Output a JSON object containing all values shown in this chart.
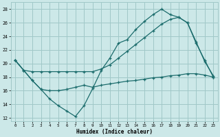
{
  "xlabel": "Humidex (Indice chaleur)",
  "xlim": [
    -0.5,
    23.5
  ],
  "ylim": [
    11.5,
    29.0
  ],
  "yticks": [
    12,
    14,
    16,
    18,
    20,
    22,
    24,
    26,
    28
  ],
  "xticks": [
    0,
    1,
    2,
    3,
    4,
    5,
    6,
    7,
    8,
    9,
    10,
    11,
    12,
    13,
    14,
    15,
    16,
    17,
    18,
    19,
    20,
    21,
    22,
    23
  ],
  "bg_color": "#cce8e8",
  "grid_color": "#a0c8c8",
  "line_color": "#1a6b6b",
  "line1_x": [
    0,
    1,
    2,
    3,
    4,
    5,
    6,
    7,
    8,
    9,
    10,
    11,
    12,
    13,
    14,
    15,
    16,
    17,
    18,
    19,
    20,
    21,
    22,
    23
  ],
  "line1_y": [
    20.5,
    19.0,
    17.5,
    16.2,
    14.8,
    13.8,
    13.0,
    12.2,
    13.8,
    16.3,
    19.0,
    20.8,
    23.0,
    23.5,
    25.0,
    26.2,
    27.2,
    28.0,
    27.2,
    26.8,
    26.0,
    23.0,
    20.5,
    18.0
  ],
  "line2_x": [
    0,
    1,
    2,
    3,
    4,
    5,
    6,
    7,
    8,
    9,
    10,
    11,
    12,
    13,
    14,
    15,
    16,
    17,
    18,
    19,
    20,
    21,
    22,
    23
  ],
  "line2_y": [
    20.5,
    19.0,
    18.8,
    18.8,
    18.8,
    18.8,
    18.8,
    18.8,
    18.8,
    18.8,
    19.2,
    19.8,
    20.8,
    21.8,
    22.8,
    23.8,
    24.8,
    25.8,
    26.5,
    26.8,
    26.0,
    23.2,
    20.3,
    18.2
  ],
  "line3_x": [
    0,
    1,
    2,
    3,
    4,
    5,
    6,
    7,
    8,
    9,
    10,
    11,
    12,
    13,
    14,
    15,
    16,
    17,
    18,
    19,
    20,
    21,
    22,
    23
  ],
  "line3_y": [
    20.5,
    19.0,
    17.5,
    16.2,
    16.0,
    16.0,
    16.2,
    16.5,
    16.8,
    16.5,
    16.8,
    17.0,
    17.2,
    17.4,
    17.5,
    17.7,
    17.9,
    18.0,
    18.2,
    18.3,
    18.5,
    18.5,
    18.3,
    18.0
  ]
}
